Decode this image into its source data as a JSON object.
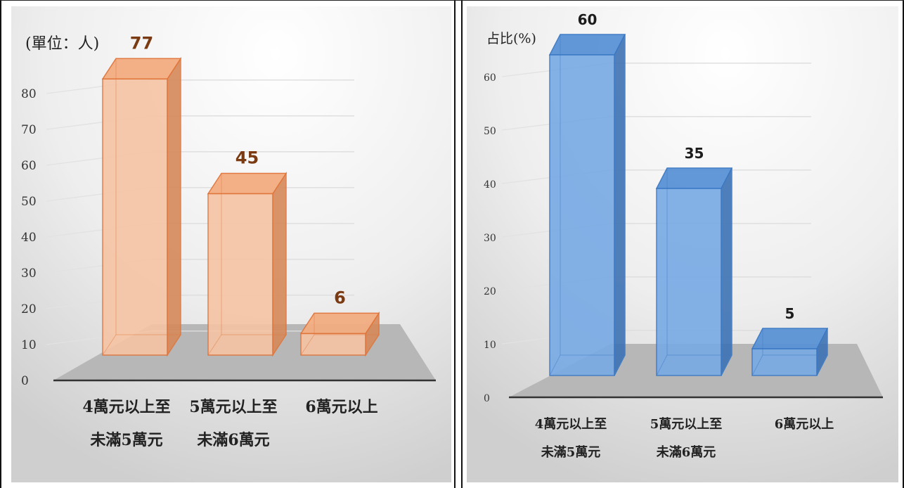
{
  "charts": [
    {
      "id": "count",
      "unit_label": "(單位：人)",
      "colors": {
        "front": "#f6c4a4",
        "side": "#d6895a",
        "top": "#f3ad82",
        "edge": "#e0753a",
        "label": "#7a3a12"
      },
      "chart_data": {
        "type": "bar",
        "title": "",
        "ylabel": "(單位：人)",
        "categories": [
          [
            "4萬元以上至",
            "未滿5萬元"
          ],
          [
            "5萬元以上至",
            "未滿6萬元"
          ],
          [
            "6萬元以上"
          ]
        ],
        "values": [
          77,
          45,
          6
        ],
        "ylim": [
          0,
          80
        ],
        "yticks": [
          0,
          10,
          20,
          30,
          40,
          50,
          60,
          70,
          80
        ],
        "grid": true
      }
    },
    {
      "id": "share",
      "unit_label": "占比(%)",
      "colors": {
        "front": "#77a9e4",
        "side": "#3e73b4",
        "top": "#5b93d6",
        "edge": "#3a78c4",
        "label": "#1c1c1c"
      },
      "chart_data": {
        "type": "bar",
        "title": "",
        "ylabel": "占比(%)",
        "categories": [
          [
            "4萬元以上至",
            "未滿5萬元"
          ],
          [
            "5萬元以上至",
            "未滿6萬元"
          ],
          [
            "6萬元以上"
          ]
        ],
        "values": [
          60,
          35,
          5
        ],
        "ylim": [
          0,
          60
        ],
        "yticks": [
          0,
          10,
          20,
          30,
          40,
          50,
          60
        ],
        "grid": true
      }
    }
  ]
}
